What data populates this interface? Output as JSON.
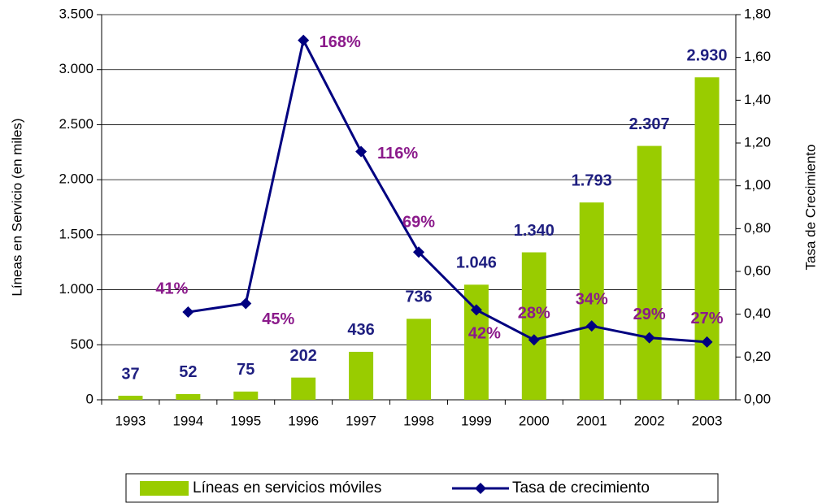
{
  "chart_data": {
    "type": "bar",
    "categories": [
      "1993",
      "1994",
      "1995",
      "1996",
      "1997",
      "1998",
      "1999",
      "2000",
      "2001",
      "2002",
      "2003"
    ],
    "series": [
      {
        "name": "Líneas en servicios móviles",
        "color": "#99cc00",
        "type": "bar",
        "values": [
          37,
          52,
          75,
          202,
          436,
          736,
          1046,
          1340,
          1793,
          2307,
          2930
        ],
        "value_labels": [
          "37",
          "52",
          "75",
          "202",
          "436",
          "736",
          "1.046",
          "1.340",
          "1.793",
          "2.307",
          "2.930"
        ],
        "label_color": "#1f1f80"
      },
      {
        "name": "Tasa de crecimiento",
        "color": "#000080",
        "type": "line",
        "axis": "y2",
        "values": [
          null,
          0.41,
          0.45,
          1.68,
          1.16,
          0.69,
          0.42,
          0.28,
          0.345,
          0.29,
          0.27
        ],
        "value_labels": [
          null,
          "41%",
          "45%",
          "168%",
          "116%",
          "69%",
          "42%",
          "28%",
          "34%",
          "29%",
          "27%"
        ],
        "label_color": "#8b1a8b"
      }
    ],
    "ylabel": "Líneas en Servicio (en miles)",
    "y2label": "Tasa de Crecimiento",
    "ylim": [
      0,
      3500
    ],
    "yticks": [
      0,
      500,
      {
        "value": 1000,
        "label": "1.000"
      },
      {
        "value": 1500,
        "label": "1.500"
      },
      {
        "value": 2000,
        "label": "2.000"
      },
      {
        "value": 2500,
        "label": "2.500"
      },
      {
        "value": 3000,
        "label": "3.000"
      },
      {
        "value": 3500,
        "label": "3.500"
      }
    ],
    "y2lim": [
      0,
      1.8
    ],
    "y2ticks": [
      {
        "value": 0,
        "label": "0,00"
      },
      {
        "value": 0.2,
        "label": "0,20"
      },
      {
        "value": 0.4,
        "label": "0,40"
      },
      {
        "value": 0.6,
        "label": "0,60"
      },
      {
        "value": 0.8,
        "label": "0,80"
      },
      {
        "value": 1.0,
        "label": "1,00"
      },
      {
        "value": 1.2,
        "label": "1,20"
      },
      {
        "value": 1.4,
        "label": "1,40"
      },
      {
        "value": 1.6,
        "label": "1,60"
      },
      {
        "value": 1.8,
        "label": "1,80"
      }
    ],
    "grid": true,
    "legend": "bottom"
  }
}
